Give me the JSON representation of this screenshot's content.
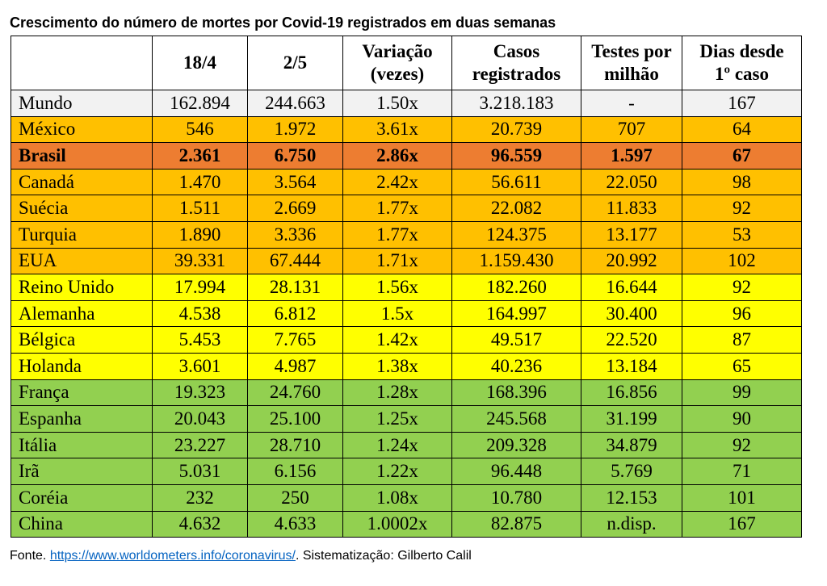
{
  "title": "Crescimento do número de mortes por Covid-19 registrados em duas semanas",
  "colors": {
    "white": "#ffffff",
    "orange": "#ffc000",
    "dark_orange": "#ed7d31",
    "yellow": "#ffff00",
    "green": "#92d050",
    "link": "#0563c1"
  },
  "table": {
    "headers": [
      [
        ""
      ],
      [
        "18/4"
      ],
      [
        "2/5"
      ],
      [
        "Variação",
        "(vezes)"
      ],
      [
        "Casos",
        "registrados"
      ],
      [
        "Testes por",
        "milhão"
      ],
      [
        "Dias desde",
        "1º caso"
      ]
    ],
    "rows": [
      {
        "color": "#f2f2f2",
        "bold": false,
        "cells": [
          "Mundo",
          "162.894",
          "244.663",
          "1.50x",
          "3.218.183",
          "-",
          "167"
        ]
      },
      {
        "color": "#ffc000",
        "bold": false,
        "cells": [
          "México",
          "546",
          "1.972",
          "3.61x",
          "20.739",
          "707",
          "64"
        ]
      },
      {
        "color": "#ed7d31",
        "bold": true,
        "cells": [
          "Brasil",
          "2.361",
          "6.750",
          "2.86x",
          "96.559",
          "1.597",
          "67"
        ]
      },
      {
        "color": "#ffc000",
        "bold": false,
        "cells": [
          "Canadá",
          "1.470",
          "3.564",
          "2.42x",
          "56.611",
          "22.050",
          "98"
        ]
      },
      {
        "color": "#ffc000",
        "bold": false,
        "cells": [
          "Suécia",
          "1.511",
          "2.669",
          "1.77x",
          "22.082",
          "11.833",
          "92"
        ]
      },
      {
        "color": "#ffc000",
        "bold": false,
        "cells": [
          "Turquia",
          "1.890",
          "3.336",
          "1.77x",
          "124.375",
          "13.177",
          "53"
        ]
      },
      {
        "color": "#ffc000",
        "bold": false,
        "cells": [
          "EUA",
          "39.331",
          "67.444",
          "1.71x",
          "1.159.430",
          "20.992",
          "102"
        ]
      },
      {
        "color": "#ffff00",
        "bold": false,
        "cells": [
          "Reino Unido",
          "17.994",
          "28.131",
          "1.56x",
          "182.260",
          "16.644",
          "92"
        ]
      },
      {
        "color": "#ffff00",
        "bold": false,
        "cells": [
          "Alemanha",
          "4.538",
          "6.812",
          "1.5x",
          "164.997",
          "30.400",
          "96"
        ]
      },
      {
        "color": "#ffff00",
        "bold": false,
        "cells": [
          "Bélgica",
          "5.453",
          "7.765",
          "1.42x",
          "49.517",
          "22.520",
          "87"
        ]
      },
      {
        "color": "#ffff00",
        "bold": false,
        "cells": [
          "Holanda",
          "3.601",
          "4.987",
          "1.38x",
          "40.236",
          "13.184",
          "65"
        ]
      },
      {
        "color": "#92d050",
        "bold": false,
        "cells": [
          "França",
          "19.323",
          "24.760",
          "1.28x",
          "168.396",
          "16.856",
          "99"
        ]
      },
      {
        "color": "#92d050",
        "bold": false,
        "cells": [
          "Espanha",
          "20.043",
          "25.100",
          "1.25x",
          "245.568",
          "31.199",
          "90"
        ]
      },
      {
        "color": "#92d050",
        "bold": false,
        "cells": [
          "Itália",
          "23.227",
          "28.710",
          "1.24x",
          "209.328",
          "34.879",
          "92"
        ]
      },
      {
        "color": "#92d050",
        "bold": false,
        "cells": [
          "Irã",
          "5.031",
          "6.156",
          "1.22x",
          "96.448",
          "5.769",
          "71"
        ]
      },
      {
        "color": "#92d050",
        "bold": false,
        "cells": [
          "Coréia",
          "232",
          "250",
          "1.08x",
          "10.780",
          "12.153",
          "101"
        ]
      },
      {
        "color": "#92d050",
        "bold": false,
        "cells": [
          "China",
          "4.632",
          "4.633",
          "1.0002x",
          "82.875",
          "n.disp.",
          "167"
        ]
      }
    ]
  },
  "footer": {
    "prefix": "Fonte. ",
    "link": "https://www.worldometers.info/coronavirus/",
    "suffix": ". Sistematização: Gilberto Calil"
  }
}
